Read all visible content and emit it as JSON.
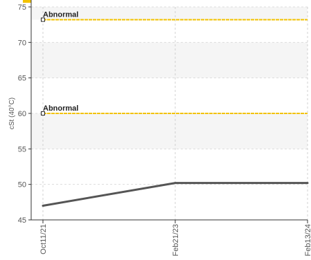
{
  "chart_data": {
    "type": "line",
    "title": "",
    "xlabel": "",
    "ylabel": "cSt (40°C)",
    "ylim": [
      45,
      75
    ],
    "yticks": [
      45,
      50,
      55,
      60,
      65,
      70,
      75
    ],
    "categories": [
      "Oct11/21",
      "Feb21/23",
      "Feb13/24"
    ],
    "series": [
      {
        "values": [
          47.0,
          50.2,
          50.2
        ],
        "color": "#555555"
      }
    ],
    "thresholds": [
      {
        "label": "Abnormal",
        "value": 73.2,
        "color": "#f2c200"
      },
      {
        "label": "Abnormal",
        "value": 60.0,
        "color": "#f2c200"
      }
    ],
    "bands": [
      [
        55,
        60
      ],
      [
        65,
        70
      ],
      [
        73.2,
        75
      ]
    ],
    "band_color": "#f5f5f5",
    "grid": true,
    "accent_color": "#f2c200"
  }
}
